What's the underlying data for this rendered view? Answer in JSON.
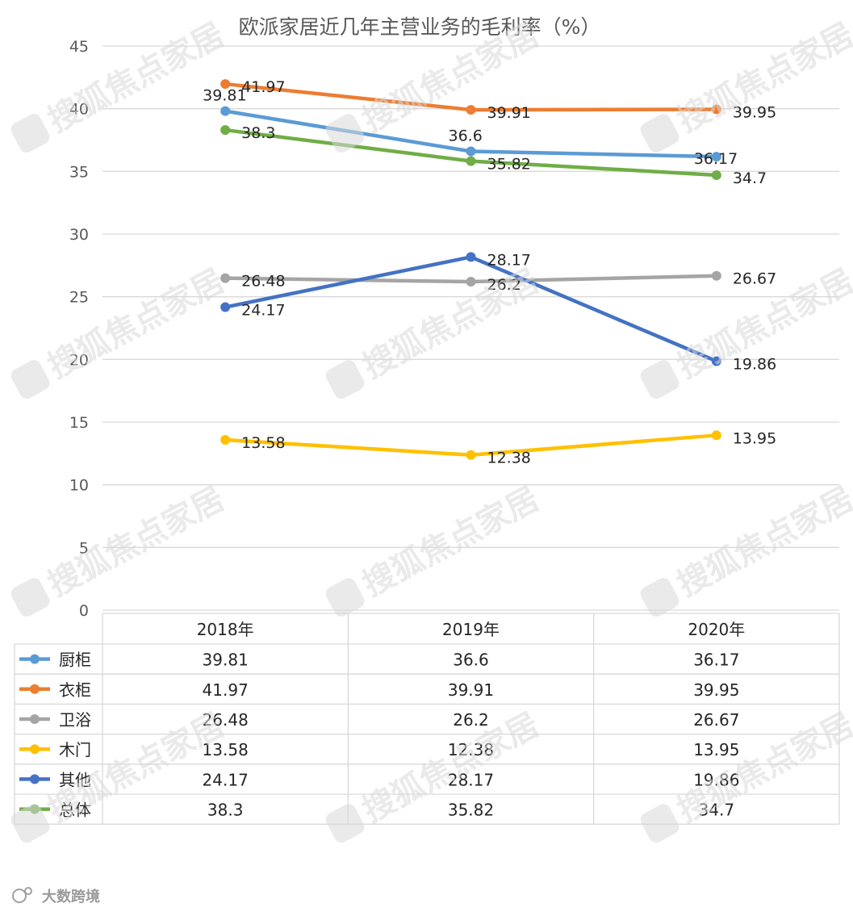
{
  "chart_data": {
    "type": "line",
    "title": "欧派家居近几年主营业务的毛利率（%）",
    "categories": [
      "2018年",
      "2019年",
      "2020年"
    ],
    "ylim": [
      0,
      45
    ],
    "yticks": [
      0,
      5,
      10,
      15,
      20,
      25,
      30,
      35,
      40,
      45
    ],
    "grid": true,
    "legend": "data-table-left",
    "series": [
      {
        "name": "厨柜",
        "values": [
          39.81,
          36.6,
          36.17
        ],
        "color": "#5b9bd5"
      },
      {
        "name": "衣柜",
        "values": [
          41.97,
          39.91,
          39.95
        ],
        "color": "#ed7d31"
      },
      {
        "name": "卫浴",
        "values": [
          26.48,
          26.2,
          26.67
        ],
        "color": "#a5a5a5"
      },
      {
        "name": "木门",
        "values": [
          13.58,
          12.38,
          13.95
        ],
        "color": "#ffc000"
      },
      {
        "name": "其他",
        "values": [
          24.17,
          28.17,
          19.86
        ],
        "color": "#4472c4"
      },
      {
        "name": "总体",
        "values": [
          38.3,
          35.82,
          34.7
        ],
        "color": "#70ad47"
      }
    ]
  },
  "watermark": "搜狐焦点家居",
  "footer_text": "大数跨境"
}
